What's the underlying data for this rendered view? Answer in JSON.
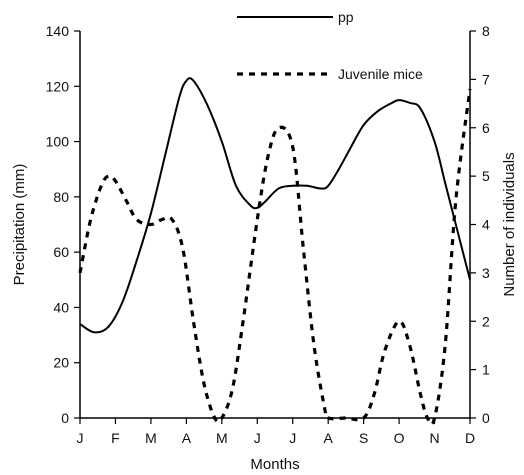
{
  "chart_data": {
    "type": "line",
    "categories": [
      "J",
      "F",
      "M",
      "A",
      "M",
      "J",
      "J",
      "A",
      "S",
      "O",
      "N",
      "D"
    ],
    "xlabel": "Months",
    "ylabel_left": "Precipitation (mm)",
    "ylabel_right": "Number of individuals",
    "ylim_left": [
      0,
      140
    ],
    "ylim_right": [
      0,
      8
    ],
    "yticks_left": [
      0,
      20,
      40,
      60,
      80,
      100,
      120,
      140
    ],
    "yticks_right": [
      0,
      1,
      2,
      3,
      4,
      5,
      6,
      7,
      8
    ],
    "grid": false,
    "legend_position": "top-right",
    "series": [
      {
        "name": "pp",
        "axis": "left",
        "style": "solid",
        "color": "#000000",
        "x": [
          0,
          0.4,
          0.8,
          1.2,
          1.6,
          2.0,
          2.4,
          2.8,
          3.0,
          3.2,
          3.6,
          4.0,
          4.4,
          4.8,
          5.0,
          5.2,
          5.6,
          6.0,
          6.4,
          6.8,
          7.0,
          7.3,
          7.6,
          8.0,
          8.4,
          8.8,
          9.0,
          9.3,
          9.6,
          10.0,
          10.3,
          10.6,
          11.0
        ],
        "values": [
          34,
          31,
          33,
          42,
          57,
          74,
          95,
          116,
          122,
          122,
          113,
          100,
          84,
          77,
          76,
          78,
          83,
          84,
          84,
          83,
          84,
          90,
          97,
          106,
          111,
          114,
          115,
          114,
          112,
          100,
          85,
          70,
          50
        ]
      },
      {
        "name": "Juvenile mice",
        "axis": "right",
        "style": "dotted",
        "color": "#000000",
        "x": [
          0,
          0.3,
          0.6,
          0.8,
          1.0,
          1.3,
          1.6,
          2.0,
          2.3,
          2.6,
          2.9,
          3.2,
          3.5,
          3.8,
          4.0,
          4.3,
          4.6,
          5.0,
          5.3,
          5.6,
          6.0,
          6.3,
          6.6,
          6.9,
          7.0,
          7.5,
          8.0,
          8.3,
          8.6,
          9.0,
          9.3,
          9.6,
          9.8,
          10.0,
          10.3,
          10.6,
          11.0
        ],
        "values": [
          3.0,
          4.1,
          4.8,
          5.0,
          4.9,
          4.5,
          4.1,
          4.0,
          4.1,
          4.1,
          3.5,
          2.0,
          0.7,
          0.0,
          0.0,
          0.6,
          2.0,
          4.1,
          5.4,
          6.0,
          5.6,
          3.5,
          1.5,
          0.2,
          0.0,
          0.0,
          0.0,
          0.5,
          1.4,
          2.0,
          1.5,
          0.5,
          0.0,
          0.0,
          1.5,
          4.5,
          6.8
        ]
      }
    ]
  }
}
